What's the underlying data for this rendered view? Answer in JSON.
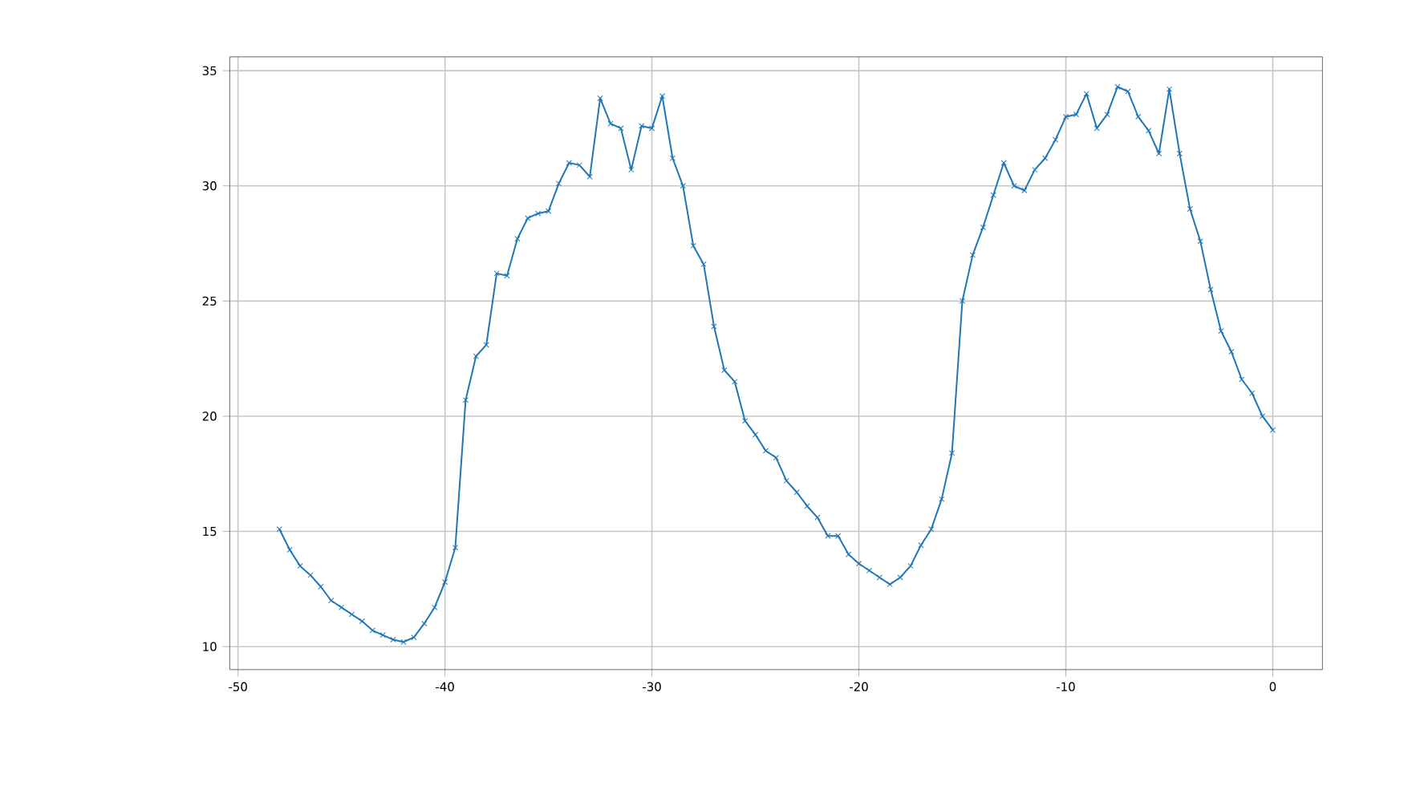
{
  "chart_data": {
    "type": "line",
    "color": "#1f77b4",
    "marker": "cross",
    "grid": true,
    "xlim": [
      -50.4,
      2.4
    ],
    "ylim": [
      9.0,
      35.6
    ],
    "xticks": [
      -50,
      -40,
      -30,
      -20,
      -10,
      0
    ],
    "yticks": [
      10,
      15,
      20,
      25,
      30,
      35
    ],
    "x": [
      -48,
      -47.5,
      -47,
      -46.5,
      -46,
      -45.5,
      -45,
      -44.5,
      -44,
      -43.5,
      -43,
      -42.5,
      -42,
      -41.5,
      -41,
      -40.5,
      -40,
      -39.5,
      -39,
      -38.5,
      -38,
      -37.5,
      -37,
      -36.5,
      -36,
      -35.5,
      -35,
      -34.5,
      -34,
      -33.5,
      -33,
      -32.5,
      -32,
      -31.5,
      -31,
      -30.5,
      -30,
      -29.5,
      -29,
      -28.5,
      -28,
      -27.5,
      -27,
      -26.5,
      -26,
      -25.5,
      -25,
      -24.5,
      -24,
      -23.5,
      -23,
      -22.5,
      -22,
      -21.5,
      -21,
      -20.5,
      -20,
      -19.5,
      -19,
      -18.5,
      -18,
      -17.5,
      -17,
      -16.5,
      -16,
      -15.5,
      -15,
      -14.5,
      -14,
      -13.5,
      -13,
      -12.5,
      -12,
      -11.5,
      -11,
      -10.5,
      -10,
      -9.5,
      -9,
      -8.5,
      -8,
      -7.5,
      -7,
      -6.5,
      -6,
      -5.5,
      -5,
      -4.5,
      -4,
      -3.5,
      -3,
      -2.5,
      -2,
      -1.5,
      -1,
      -0.5,
      0
    ],
    "values": [
      15.1,
      14.2,
      13.5,
      13.1,
      12.6,
      12.0,
      11.7,
      11.4,
      11.1,
      10.7,
      10.5,
      10.3,
      10.2,
      10.4,
      11.0,
      11.7,
      12.8,
      14.3,
      20.7,
      22.6,
      23.1,
      26.2,
      26.1,
      27.7,
      28.6,
      28.8,
      28.9,
      30.1,
      31.0,
      30.9,
      30.4,
      33.8,
      32.7,
      32.5,
      30.7,
      32.6,
      32.5,
      33.9,
      31.2,
      30.0,
      27.4,
      26.6,
      23.9,
      22.0,
      21.5,
      19.8,
      19.2,
      18.5,
      18.2,
      17.2,
      16.7,
      16.1,
      15.6,
      14.8,
      14.8,
      14.0,
      13.6,
      13.3,
      13.0,
      12.7,
      13.0,
      13.5,
      14.4,
      15.1,
      16.4,
      18.4,
      25.0,
      27.0,
      28.2,
      29.6,
      31.0,
      30.0,
      29.8,
      30.7,
      31.2,
      32.0,
      33.0,
      33.1,
      34.0,
      32.5,
      33.1,
      34.3,
      34.1,
      33.0,
      32.4,
      31.4,
      34.2,
      31.4,
      29.0,
      27.6,
      25.5,
      23.7,
      22.8,
      21.6,
      21.0,
      20.0,
      19.4
    ]
  }
}
